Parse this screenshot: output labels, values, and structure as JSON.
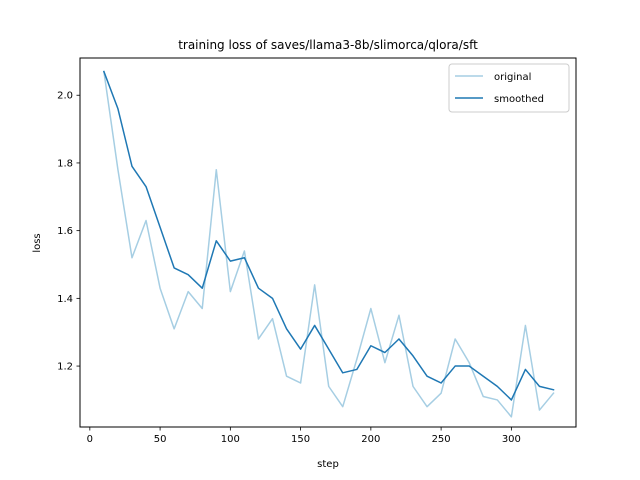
{
  "chart_data": {
    "type": "line",
    "title": "training loss of saves/llama3-8b/slimorca/qlora/sft",
    "xlabel": "step",
    "ylabel": "loss",
    "xlim": [
      -7,
      346
    ],
    "ylim": [
      1.02,
      2.11
    ],
    "xticks": [
      0,
      50,
      100,
      150,
      200,
      250,
      300
    ],
    "yticks": [
      1.2,
      1.4,
      1.6,
      1.8,
      2.0
    ],
    "ytick_labels": [
      "1.2",
      "1.4",
      "1.6",
      "1.8",
      "2.0"
    ],
    "grid": false,
    "legend": {
      "position": "upper right",
      "entries": [
        "original",
        "smoothed"
      ]
    },
    "x": [
      10,
      20,
      30,
      40,
      50,
      60,
      70,
      80,
      90,
      100,
      110,
      120,
      130,
      140,
      150,
      160,
      170,
      180,
      190,
      200,
      210,
      220,
      230,
      240,
      250,
      260,
      270,
      280,
      290,
      300,
      310,
      320,
      330
    ],
    "series": [
      {
        "name": "original",
        "color": "#a6cee3",
        "values": [
          2.07,
          1.78,
          1.52,
          1.63,
          1.43,
          1.31,
          1.42,
          1.37,
          1.78,
          1.42,
          1.54,
          1.28,
          1.34,
          1.17,
          1.15,
          1.44,
          1.14,
          1.08,
          1.22,
          1.37,
          1.21,
          1.35,
          1.14,
          1.08,
          1.12,
          1.28,
          1.21,
          1.11,
          1.1,
          1.05,
          1.32,
          1.07,
          1.12
        ]
      },
      {
        "name": "smoothed",
        "color": "#1f78b4",
        "values": [
          2.07,
          1.96,
          1.79,
          1.73,
          1.61,
          1.49,
          1.47,
          1.43,
          1.57,
          1.51,
          1.52,
          1.43,
          1.4,
          1.31,
          1.25,
          1.32,
          1.25,
          1.18,
          1.19,
          1.26,
          1.24,
          1.28,
          1.23,
          1.17,
          1.15,
          1.2,
          1.2,
          1.17,
          1.14,
          1.1,
          1.19,
          1.14,
          1.13
        ]
      }
    ]
  }
}
